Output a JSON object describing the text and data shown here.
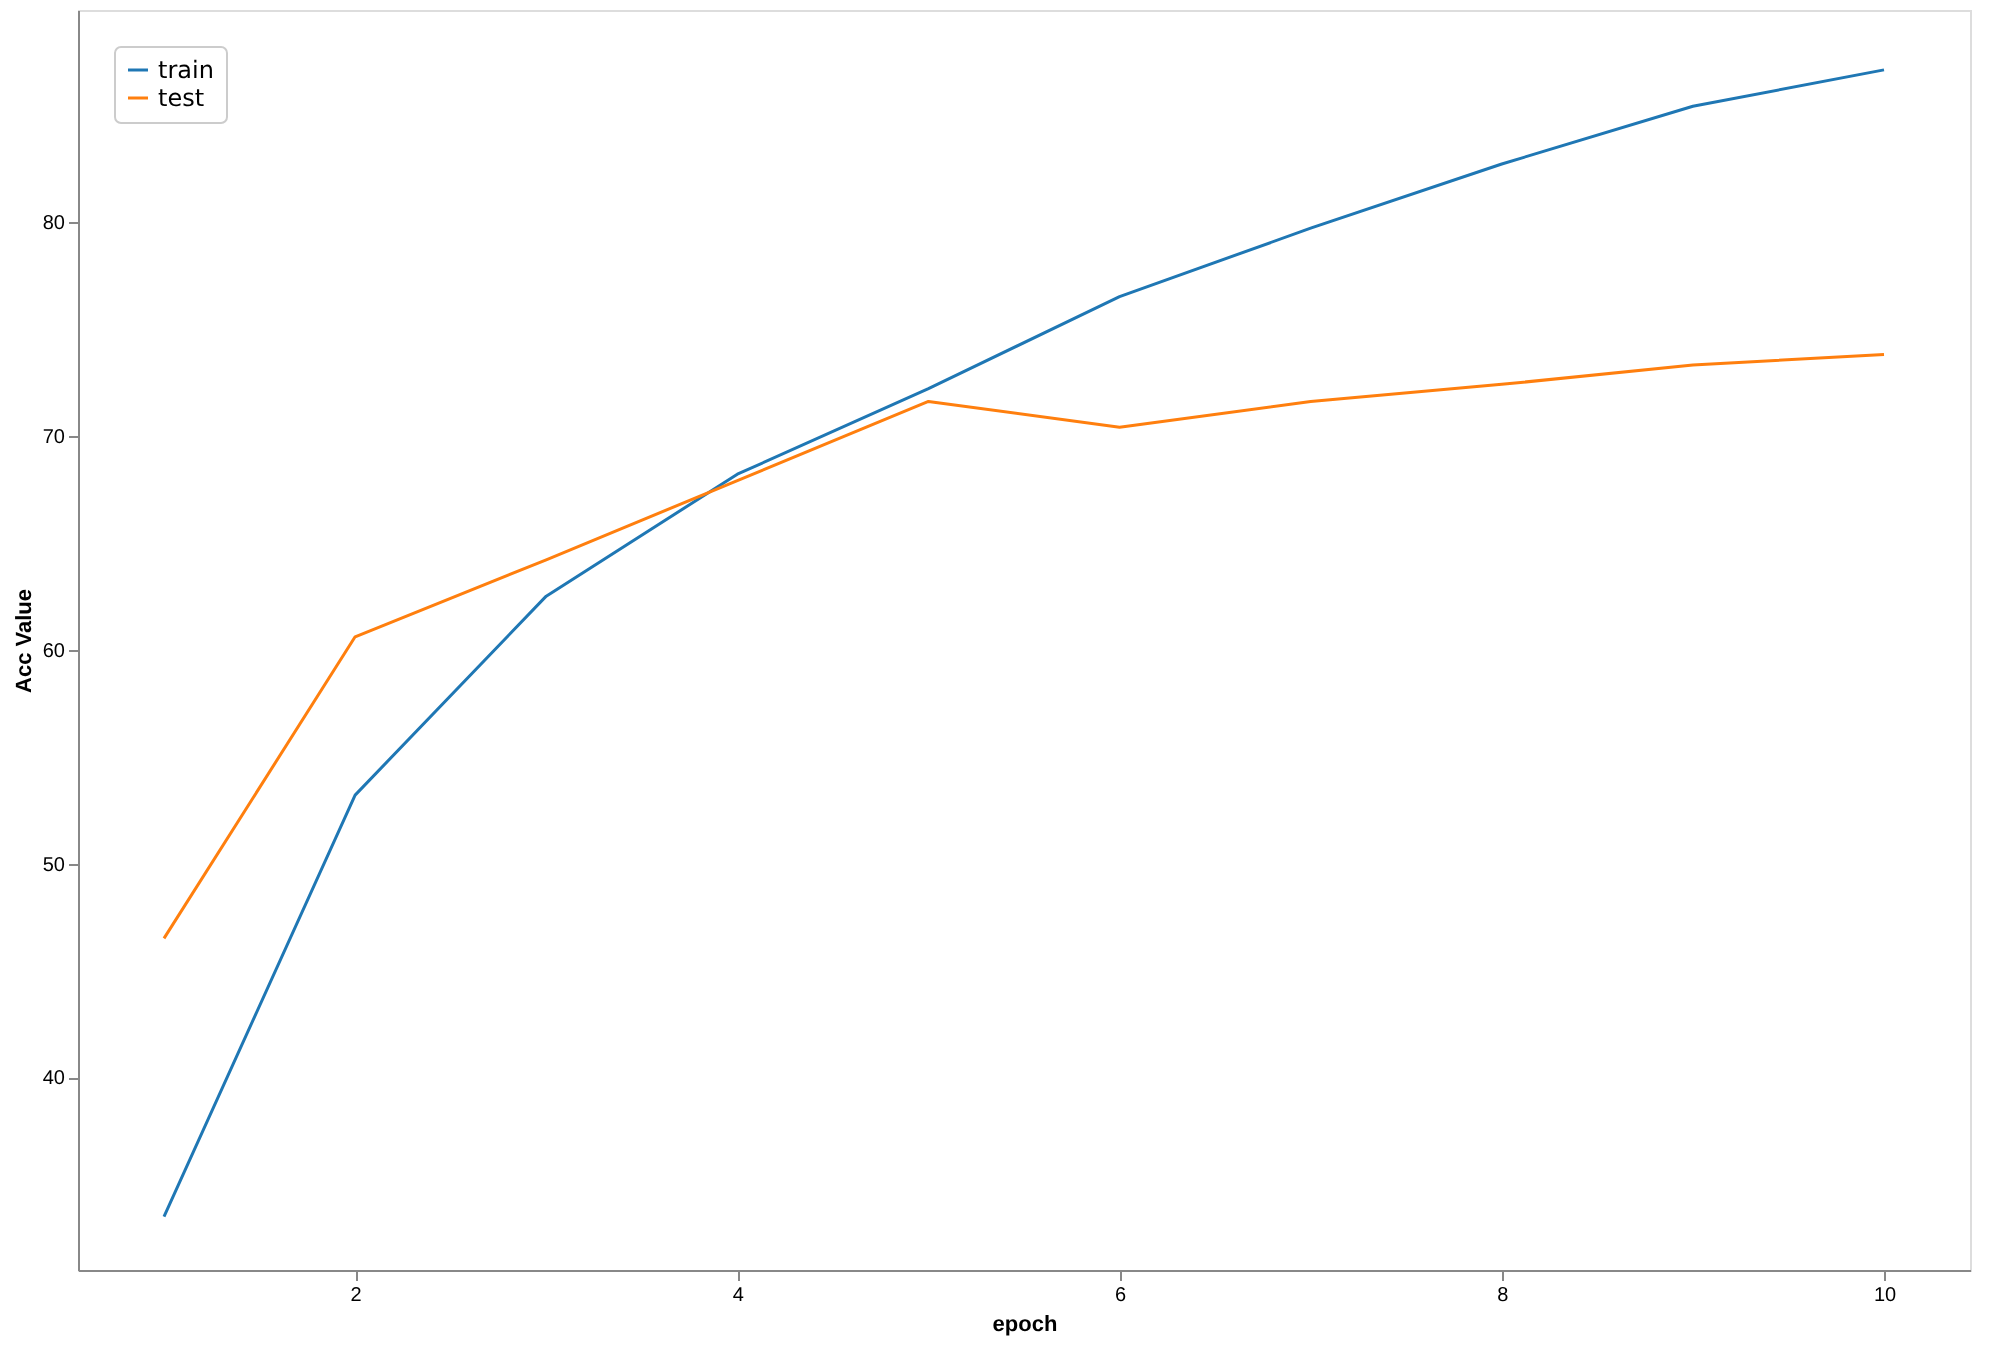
{
  "chart_data": {
    "type": "line",
    "xlabel": "epoch",
    "ylabel": "Acc Value",
    "x": [
      1,
      2,
      3,
      4,
      5,
      6,
      7,
      8,
      9,
      10
    ],
    "series": [
      {
        "name": "train",
        "color": "#1f77b4",
        "values": [
          33.5,
          53.2,
          62.5,
          68.2,
          72.2,
          76.5,
          79.7,
          82.7,
          85.4,
          87.1
        ]
      },
      {
        "name": "test",
        "color": "#ff7f0e",
        "values": [
          46.5,
          60.6,
          64.2,
          67.9,
          71.6,
          70.4,
          71.6,
          72.4,
          73.3,
          73.8
        ]
      }
    ],
    "xlim": [
      0.55,
      10.45
    ],
    "ylim": [
      31,
      89.9
    ],
    "xticks": [
      2,
      4,
      6,
      8,
      10
    ],
    "yticks": [
      40,
      50,
      60,
      70,
      80
    ],
    "legend": "top left",
    "grid": false,
    "marker": "none",
    "line_style": "solid"
  }
}
